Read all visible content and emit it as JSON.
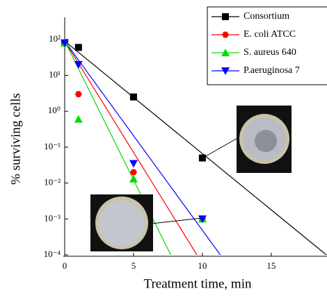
{
  "chart_data": {
    "type": "scatter",
    "x_label": "Treatment time, min",
    "y_label": "% surviving cells",
    "log_y": true,
    "xlim": [
      0,
      19
    ],
    "ylim": [
      0.0001,
      400
    ],
    "xticks": [
      0,
      5,
      10,
      15
    ],
    "yticks": [
      {
        "value": 0.0001,
        "label": "10⁻⁴"
      },
      {
        "value": 0.001,
        "label": "10⁻³"
      },
      {
        "value": 0.01,
        "label": "10⁻²"
      },
      {
        "value": 0.1,
        "label": "10⁻¹"
      },
      {
        "value": 1,
        "label": "10⁰"
      },
      {
        "value": 10,
        "label": "10¹"
      },
      {
        "value": 100,
        "label": "10²"
      }
    ],
    "series": [
      {
        "name": "Consortium",
        "color": "#000000",
        "marker": "square",
        "x": [
          0,
          1,
          5,
          10
        ],
        "values": [
          80,
          60,
          2.5,
          0.05
        ],
        "fit_x": [
          0,
          19
        ],
        "fit_values": [
          90,
          0.0001
        ]
      },
      {
        "name": "E. coli ATCC",
        "color": "#ff0000",
        "marker": "hexagon",
        "x": [
          0,
          1,
          5,
          10
        ],
        "values": [
          80,
          3,
          0.02,
          0.001
        ],
        "fit_x": [
          0,
          9.6
        ],
        "fit_values": [
          90,
          0.0001
        ]
      },
      {
        "name": "S. aureus 640",
        "color": "#00dd00",
        "marker": "triangle-up",
        "x": [
          0,
          1,
          5,
          10
        ],
        "values": [
          80,
          0.6,
          0.013,
          0.001
        ],
        "fit_x": [
          0,
          7.7
        ],
        "fit_values": [
          90,
          0.0001
        ]
      },
      {
        "name": "P.aeruginosa 7",
        "color": "#0000ff",
        "marker": "triangle-down",
        "x": [
          0,
          1,
          5,
          10
        ],
        "values": [
          80,
          20,
          0.035,
          0.001
        ],
        "fit_x": [
          0,
          11.3
        ],
        "fit_values": [
          90,
          0.0001
        ]
      }
    ]
  }
}
